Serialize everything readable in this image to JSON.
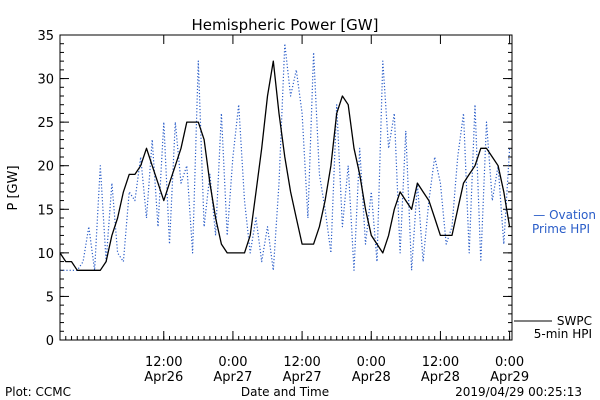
{
  "chart_data": {
    "type": "line",
    "title": "Hemispheric Power [GW]",
    "ylabel": "P [GW]",
    "xlabel": "Date and Time",
    "ylim": [
      0,
      35
    ],
    "y_ticks": [
      0,
      5,
      10,
      15,
      20,
      25,
      30,
      35
    ],
    "y_minor_step": 1,
    "xlim": [
      "2019-04-25T18:00",
      "2019-04-29T00:25"
    ],
    "x_ticks": [
      {
        "at": "2019-04-26T12:00",
        "time": "12:00",
        "date": "Apr26"
      },
      {
        "at": "2019-04-27T00:00",
        "time": "0:00",
        "date": "Apr27"
      },
      {
        "at": "2019-04-27T12:00",
        "time": "12:00",
        "date": "Apr27"
      },
      {
        "at": "2019-04-28T00:00",
        "time": "0:00",
        "date": "Apr28"
      },
      {
        "at": "2019-04-28T12:00",
        "time": "12:00",
        "date": "Apr28"
      },
      {
        "at": "2019-04-29T00:00",
        "time": "0:00",
        "date": "Apr29"
      }
    ],
    "x_minor_step_hours": 1,
    "grid": false,
    "series": [
      {
        "name": "Ovation Prime HPI",
        "color": "#2a5dc8",
        "style": "dotted",
        "x": [
          "2019-04-25T18:00",
          "2019-04-25T19:00",
          "2019-04-25T20:00",
          "2019-04-25T21:00",
          "2019-04-25T22:00",
          "2019-04-25T23:00",
          "2019-04-26T00:00",
          "2019-04-26T01:00",
          "2019-04-26T02:00",
          "2019-04-26T03:00",
          "2019-04-26T04:00",
          "2019-04-26T05:00",
          "2019-04-26T06:00",
          "2019-04-26T07:00",
          "2019-04-26T08:00",
          "2019-04-26T09:00",
          "2019-04-26T10:00",
          "2019-04-26T11:00",
          "2019-04-26T12:00",
          "2019-04-26T13:00",
          "2019-04-26T14:00",
          "2019-04-26T15:00",
          "2019-04-26T16:00",
          "2019-04-26T17:00",
          "2019-04-26T18:00",
          "2019-04-26T19:00",
          "2019-04-26T20:00",
          "2019-04-26T21:00",
          "2019-04-26T22:00",
          "2019-04-26T23:00",
          "2019-04-27T00:00",
          "2019-04-27T01:00",
          "2019-04-27T02:00",
          "2019-04-27T03:00",
          "2019-04-27T04:00",
          "2019-04-27T05:00",
          "2019-04-27T06:00",
          "2019-04-27T07:00",
          "2019-04-27T08:00",
          "2019-04-27T09:00",
          "2019-04-27T10:00",
          "2019-04-27T11:00",
          "2019-04-27T12:00",
          "2019-04-27T13:00",
          "2019-04-27T14:00",
          "2019-04-27T15:00",
          "2019-04-27T16:00",
          "2019-04-27T17:00",
          "2019-04-27T18:00",
          "2019-04-27T19:00",
          "2019-04-27T20:00",
          "2019-04-27T21:00",
          "2019-04-27T22:00",
          "2019-04-27T23:00",
          "2019-04-28T00:00",
          "2019-04-28T01:00",
          "2019-04-28T02:00",
          "2019-04-28T03:00",
          "2019-04-28T04:00",
          "2019-04-28T05:00",
          "2019-04-28T06:00",
          "2019-04-28T07:00",
          "2019-04-28T08:00",
          "2019-04-28T09:00",
          "2019-04-28T10:00",
          "2019-04-28T11:00",
          "2019-04-28T12:00",
          "2019-04-28T13:00",
          "2019-04-28T14:00",
          "2019-04-28T15:00",
          "2019-04-28T16:00",
          "2019-04-28T17:00",
          "2019-04-28T18:00",
          "2019-04-28T19:00",
          "2019-04-28T20:00",
          "2019-04-28T21:00",
          "2019-04-28T22:00",
          "2019-04-28T23:00",
          "2019-04-29T00:00"
        ],
        "y": [
          8,
          8,
          8,
          8,
          9,
          13,
          8,
          20,
          9,
          18,
          10,
          9,
          17,
          16,
          21,
          14,
          23,
          13,
          25,
          11,
          25,
          18,
          20,
          10,
          32,
          13,
          19,
          12,
          26,
          12,
          21,
          27,
          16,
          10,
          14,
          9,
          13,
          8,
          18,
          34,
          28,
          31,
          26,
          14,
          33,
          19,
          15,
          10,
          27,
          13,
          20,
          8,
          22,
          11,
          17,
          9,
          32,
          22,
          26,
          10,
          24,
          8,
          18,
          9,
          16,
          21,
          18,
          11,
          13,
          21,
          26,
          10,
          27,
          9,
          25,
          16,
          20,
          11,
          22
        ]
      },
      {
        "name": "SWPC 5-min HPI",
        "color": "#000000",
        "style": "solid",
        "x": [
          "2019-04-25T18:00",
          "2019-04-25T19:00",
          "2019-04-25T20:00",
          "2019-04-25T21:00",
          "2019-04-25T22:00",
          "2019-04-25T23:00",
          "2019-04-26T00:00",
          "2019-04-26T01:00",
          "2019-04-26T02:00",
          "2019-04-26T03:00",
          "2019-04-26T04:00",
          "2019-04-26T05:00",
          "2019-04-26T06:00",
          "2019-04-26T07:00",
          "2019-04-26T08:00",
          "2019-04-26T09:00",
          "2019-04-26T10:00",
          "2019-04-26T11:00",
          "2019-04-26T12:00",
          "2019-04-26T13:00",
          "2019-04-26T14:00",
          "2019-04-26T15:00",
          "2019-04-26T16:00",
          "2019-04-26T17:00",
          "2019-04-26T18:00",
          "2019-04-26T19:00",
          "2019-04-26T20:00",
          "2019-04-26T21:00",
          "2019-04-26T22:00",
          "2019-04-26T23:00",
          "2019-04-27T00:00",
          "2019-04-27T01:00",
          "2019-04-27T02:00",
          "2019-04-27T03:00",
          "2019-04-27T04:00",
          "2019-04-27T05:00",
          "2019-04-27T06:00",
          "2019-04-27T07:00",
          "2019-04-27T08:00",
          "2019-04-27T09:00",
          "2019-04-27T10:00",
          "2019-04-27T11:00",
          "2019-04-27T12:00",
          "2019-04-27T13:00",
          "2019-04-27T14:00",
          "2019-04-27T15:00",
          "2019-04-27T16:00",
          "2019-04-27T17:00",
          "2019-04-27T18:00",
          "2019-04-27T19:00",
          "2019-04-27T20:00",
          "2019-04-27T21:00",
          "2019-04-27T22:00",
          "2019-04-27T23:00",
          "2019-04-28T00:00",
          "2019-04-28T01:00",
          "2019-04-28T02:00",
          "2019-04-28T03:00",
          "2019-04-28T04:00",
          "2019-04-28T05:00",
          "2019-04-28T06:00",
          "2019-04-28T07:00",
          "2019-04-28T08:00",
          "2019-04-28T09:00",
          "2019-04-28T10:00",
          "2019-04-28T11:00",
          "2019-04-28T12:00",
          "2019-04-28T13:00",
          "2019-04-28T14:00",
          "2019-04-28T15:00",
          "2019-04-28T16:00",
          "2019-04-28T17:00",
          "2019-04-28T18:00",
          "2019-04-28T19:00",
          "2019-04-28T20:00",
          "2019-04-28T21:00",
          "2019-04-28T22:00",
          "2019-04-28T23:00",
          "2019-04-29T00:00"
        ],
        "y": [
          10,
          9,
          9,
          8,
          8,
          8,
          8,
          8,
          9,
          12,
          14,
          17,
          19,
          19,
          20,
          22,
          20,
          18,
          16,
          18,
          20,
          22,
          25,
          25,
          25,
          23,
          18,
          14,
          11,
          10,
          10,
          10,
          10,
          12,
          17,
          22,
          28,
          32,
          26,
          21,
          17,
          14,
          11,
          11,
          11,
          13,
          16,
          20,
          26,
          28,
          27,
          22,
          19,
          15,
          12,
          11,
          10,
          12,
          15,
          17,
          16,
          15,
          18,
          17,
          16,
          14,
          12,
          12,
          12,
          15,
          18,
          19,
          20,
          22,
          22,
          21,
          20,
          17,
          13
        ]
      }
    ],
    "legend": [
      {
        "series": "Ovation Prime HPI",
        "lines": [
          "— Ovation",
          "Prime HPI"
        ],
        "color": "#2a5dc8",
        "placement": "right, mid-height"
      },
      {
        "series": "SWPC 5-min HPI",
        "lines": [
          "SWPC",
          "5-min HPI"
        ],
        "color": "#000000",
        "placement": "right, bottom"
      }
    ]
  },
  "footer": {
    "left": "Plot: CCMC",
    "center": "Date and Time",
    "right": "2019/04/29 00:25:13"
  }
}
